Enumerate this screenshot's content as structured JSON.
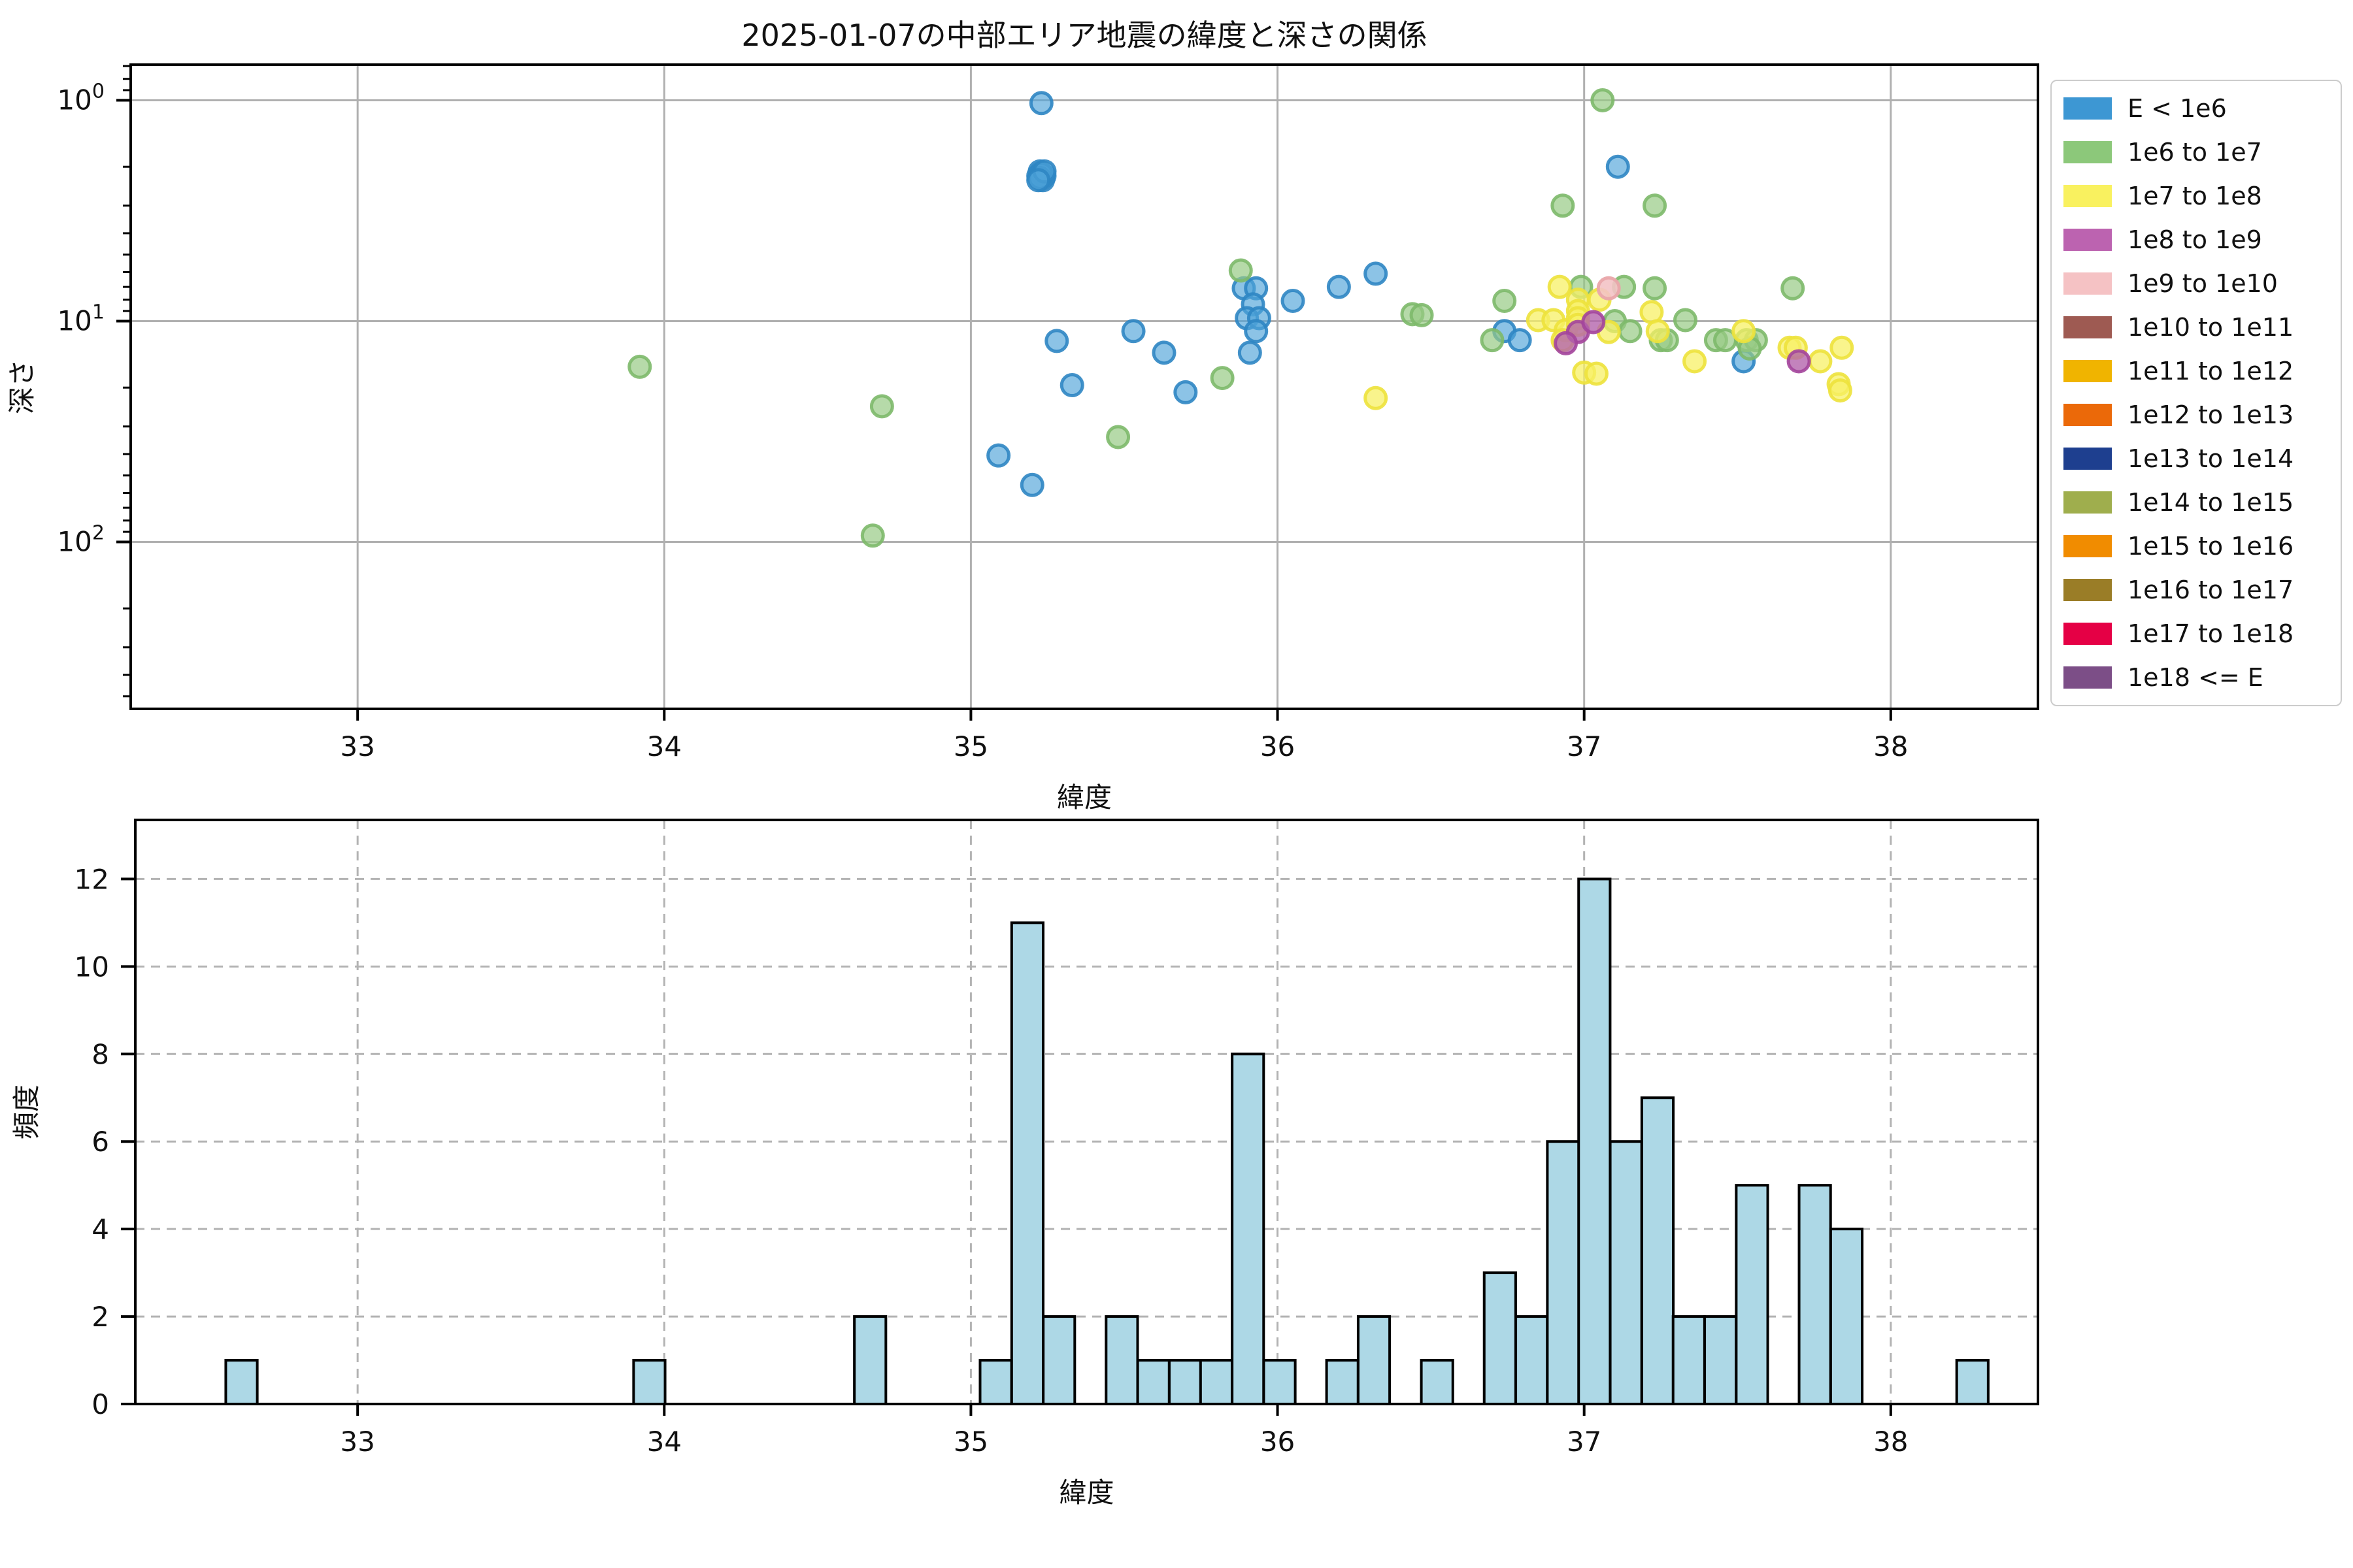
{
  "figure": {
    "title": "2025-01-07の中部エリア地震の緯度と深さの関係"
  },
  "chart_data": [
    {
      "type": "scatter",
      "title": "2025-01-07の中部エリア地震の緯度と深さの関係",
      "xlabel": "緯度",
      "ylabel": "深さ",
      "xlim": [
        32.26,
        38.48
      ],
      "x_ticks": [
        33,
        34,
        35,
        36,
        37,
        38
      ],
      "y_scale": "log",
      "y_inverted": true,
      "ylim": [
        0.69,
        570
      ],
      "y_tick_values": [
        1,
        10,
        100
      ],
      "y_tick_exponents": [
        0,
        1,
        2
      ],
      "grid": true,
      "legend_position": "outside upper right",
      "series": [
        {
          "name": "E < 1e6",
          "color": "#3D97D3",
          "fill": "rgba(79,163,216,0.65)",
          "edge": "rgba(47,134,195,0.9)",
          "points": [
            [
              35.09,
              40.6
            ],
            [
              35.2,
              55.2
            ],
            [
              35.23,
              1.03
            ],
            [
              35.225,
              2.1
            ],
            [
              35.23,
              2.2
            ],
            [
              35.235,
              2.3
            ],
            [
              35.22,
              2.2
            ],
            [
              35.24,
              2.2
            ],
            [
              35.23,
              2.15
            ],
            [
              35.225,
              2.25
            ],
            [
              35.24,
              2.1
            ],
            [
              35.22,
              2.3
            ],
            [
              35.28,
              12.3
            ],
            [
              35.33,
              19.5
            ],
            [
              35.53,
              11.1
            ],
            [
              35.63,
              13.9
            ],
            [
              35.7,
              21.0
            ],
            [
              35.89,
              7.1
            ],
            [
              35.93,
              7.1
            ],
            [
              35.92,
              8.4
            ],
            [
              35.9,
              9.7
            ],
            [
              35.94,
              9.7
            ],
            [
              35.93,
              11.1
            ],
            [
              35.91,
              13.9
            ],
            [
              36.05,
              8.1
            ],
            [
              36.2,
              7.0
            ],
            [
              36.32,
              6.1
            ],
            [
              36.74,
              11.1
            ],
            [
              36.79,
              12.2
            ],
            [
              37.11,
              2.0
            ],
            [
              37.52,
              15.2
            ]
          ]
        },
        {
          "name": "1e6 to 1e7",
          "color": "#8CC87A",
          "fill": "rgba(151,203,133,0.7)",
          "edge": "rgba(125,185,106,0.9)",
          "points": [
            [
              33.92,
              16.1
            ],
            [
              34.71,
              24.3
            ],
            [
              34.68,
              93.6
            ],
            [
              35.48,
              33.5
            ],
            [
              35.82,
              18.1
            ],
            [
              35.88,
              5.9
            ],
            [
              36.44,
              9.3
            ],
            [
              36.47,
              9.4
            ],
            [
              36.7,
              12.2
            ],
            [
              36.74,
              8.1
            ],
            [
              36.93,
              3.0
            ],
            [
              36.99,
              7.0
            ],
            [
              37.06,
              1.0
            ],
            [
              37.1,
              10.0
            ],
            [
              37.13,
              7.0
            ],
            [
              37.15,
              11.1
            ],
            [
              37.23,
              7.1
            ],
            [
              37.23,
              3.0
            ],
            [
              37.25,
              12.2
            ],
            [
              37.27,
              12.2
            ],
            [
              37.33,
              9.9
            ],
            [
              37.43,
              12.2
            ],
            [
              37.46,
              12.2
            ],
            [
              37.53,
              12.2
            ],
            [
              37.56,
              12.2
            ],
            [
              37.54,
              13.3
            ],
            [
              37.68,
              7.1
            ]
          ]
        },
        {
          "name": "1e7 to 1e8",
          "color": "#F9F15F",
          "fill": "rgba(247,240,101,0.75)",
          "edge": "rgba(237,226,60,0.9)",
          "points": [
            [
              36.32,
              22.3
            ],
            [
              36.85,
              9.9
            ],
            [
              36.9,
              9.9
            ],
            [
              36.92,
              7.0
            ],
            [
              36.94,
              11.0
            ],
            [
              36.93,
              12.2
            ],
            [
              36.98,
              8.0
            ],
            [
              36.98,
              9.0
            ],
            [
              36.98,
              9.7
            ],
            [
              36.98,
              10.4
            ],
            [
              37.0,
              17.1
            ],
            [
              37.04,
              17.3
            ],
            [
              37.05,
              8.0
            ],
            [
              37.08,
              11.2
            ],
            [
              37.22,
              9.1
            ],
            [
              37.24,
              11.1
            ],
            [
              37.36,
              15.2
            ],
            [
              37.52,
              11.1
            ],
            [
              37.67,
              13.2
            ],
            [
              37.69,
              13.2
            ],
            [
              37.77,
              15.2
            ],
            [
              37.84,
              13.2
            ],
            [
              37.83,
              19.3
            ],
            [
              37.835,
              20.6
            ]
          ]
        },
        {
          "name": "1e8 to 1e9",
          "color": "#BC63B0",
          "fill": "rgba(180,100,172,0.8)",
          "edge": "rgba(163,69,155,0.9)",
          "points": [
            [
              36.98,
              11.2
            ],
            [
              36.94,
              12.6
            ],
            [
              37.03,
              10.1
            ],
            [
              37.7,
              15.2
            ]
          ]
        },
        {
          "name": "1e9 to 1e10",
          "color": "#F5C2C4",
          "fill": "rgba(243,195,197,0.9)",
          "edge": "rgba(233,166,170,0.95)",
          "points": [
            [
              37.08,
              7.1
            ]
          ]
        },
        {
          "name": "1e10 to 1e11",
          "color": "#9E5A52",
          "fill": "rgba(158,90,82,0.8)",
          "edge": "rgba(132,70,63,0.9)",
          "points": []
        },
        {
          "name": "1e11 to 1e12",
          "color": "#F0B400",
          "fill": "rgba(240,180,0,0.8)",
          "edge": "rgba(205,152,0,0.9)",
          "points": []
        },
        {
          "name": "1e12 to 1e13",
          "color": "#EB6909",
          "fill": "rgba(235,105,9,0.8)",
          "edge": "rgba(200,88,6,0.9)",
          "points": []
        },
        {
          "name": "1e13 to 1e14",
          "color": "#1E3F8F",
          "fill": "rgba(30,63,143,0.8)",
          "edge": "rgba(22,48,110,0.9)",
          "points": []
        },
        {
          "name": "1e14 to 1e15",
          "color": "#9FAE4D",
          "fill": "rgba(159,174,77,0.8)",
          "edge": "rgba(132,146,60,0.9)",
          "points": []
        },
        {
          "name": "1e15 to 1e16",
          "color": "#F18C00",
          "fill": "rgba(241,140,0,0.8)",
          "edge": "rgba(205,118,0,0.9)",
          "points": []
        },
        {
          "name": "1e16 to 1e17",
          "color": "#9A7D27",
          "fill": "rgba(154,125,39,0.8)",
          "edge": "rgba(126,101,30,0.9)",
          "points": []
        },
        {
          "name": "1e17 to 1e18",
          "color": "#E50045",
          "fill": "rgba(229,0,69,0.8)",
          "edge": "rgba(190,0,56,0.9)",
          "points": []
        },
        {
          "name": "1e18 <= E",
          "color": "#7C4E87",
          "fill": "rgba(124,78,135,0.8)",
          "edge": "rgba(100,60,110,0.9)",
          "points": []
        }
      ]
    },
    {
      "type": "bar",
      "title": "",
      "xlabel": "緯度",
      "ylabel": "頻度",
      "xlim": [
        32.26,
        38.48
      ],
      "x_ticks": [
        33,
        34,
        35,
        36,
        37,
        38
      ],
      "ylim": [
        0,
        13.35
      ],
      "y_ticks": [
        0,
        2,
        4,
        6,
        8,
        10,
        12
      ],
      "grid": "dashed",
      "bar_color": "#ADD8E6",
      "bar_edge": "#000000",
      "bin_width": 0.1027,
      "bars": [
        {
          "x": 32.57,
          "count": 1
        },
        {
          "x": 33.9,
          "count": 1
        },
        {
          "x": 34.62,
          "count": 2
        },
        {
          "x": 35.03,
          "count": 1
        },
        {
          "x": 35.133,
          "count": 11
        },
        {
          "x": 35.236,
          "count": 2
        },
        {
          "x": 35.441,
          "count": 2
        },
        {
          "x": 35.544,
          "count": 1
        },
        {
          "x": 35.647,
          "count": 1
        },
        {
          "x": 35.749,
          "count": 1
        },
        {
          "x": 35.852,
          "count": 8
        },
        {
          "x": 35.955,
          "count": 1
        },
        {
          "x": 36.16,
          "count": 1
        },
        {
          "x": 36.263,
          "count": 2
        },
        {
          "x": 36.469,
          "count": 1
        },
        {
          "x": 36.674,
          "count": 3
        },
        {
          "x": 36.777,
          "count": 2
        },
        {
          "x": 36.88,
          "count": 6
        },
        {
          "x": 36.982,
          "count": 12
        },
        {
          "x": 37.085,
          "count": 6
        },
        {
          "x": 37.188,
          "count": 7
        },
        {
          "x": 37.29,
          "count": 2
        },
        {
          "x": 37.393,
          "count": 2
        },
        {
          "x": 37.496,
          "count": 5
        },
        {
          "x": 37.701,
          "count": 5
        },
        {
          "x": 37.804,
          "count": 4
        },
        {
          "x": 38.215,
          "count": 1
        }
      ]
    }
  ],
  "legend": {
    "entries": [
      {
        "label": "E < 1e6",
        "color": "#3D97D3"
      },
      {
        "label": "1e6 to 1e7",
        "color": "#8CC87A"
      },
      {
        "label": "1e7 to 1e8",
        "color": "#F9F15F"
      },
      {
        "label": "1e8 to 1e9",
        "color": "#BC63B0"
      },
      {
        "label": "1e9 to 1e10",
        "color": "#F5C2C4"
      },
      {
        "label": "1e10 to 1e11",
        "color": "#9E5A52"
      },
      {
        "label": "1e11 to 1e12",
        "color": "#F0B400"
      },
      {
        "label": "1e12 to 1e13",
        "color": "#EB6909"
      },
      {
        "label": "1e13 to 1e14",
        "color": "#1E3F8F"
      },
      {
        "label": "1e14 to 1e15",
        "color": "#9FAE4D"
      },
      {
        "label": "1e15 to 1e16",
        "color": "#F18C00"
      },
      {
        "label": "1e16 to 1e17",
        "color": "#9A7D27"
      },
      {
        "label": "1e17 to 1e18",
        "color": "#E50045"
      },
      {
        "label": "1e18 <= E",
        "color": "#7C4E87"
      }
    ]
  }
}
